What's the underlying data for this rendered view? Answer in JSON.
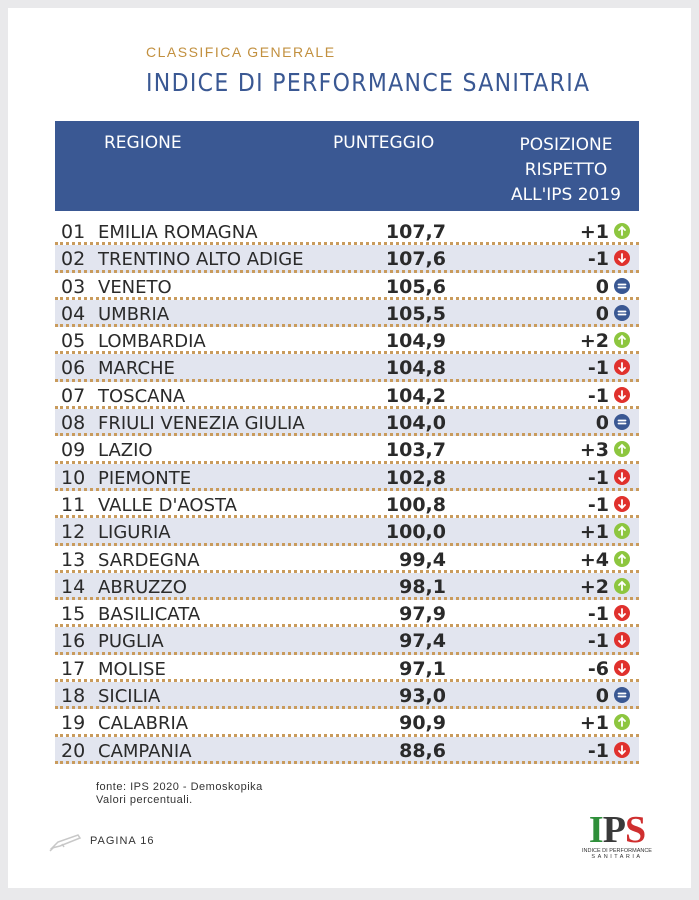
{
  "header": {
    "eyebrow": "CLASSIFICA GENERALE",
    "title": "INDICE DI PERFORMANCE SANITARIA"
  },
  "table": {
    "col_region": "REGIONE",
    "col_score": "PUNTEGGIO",
    "col_position_lines": [
      "POSIZIONE",
      "RISPETTO",
      "ALL'IPS 2019"
    ],
    "rows": [
      {
        "rank": "01",
        "region": "EMILIA ROMAGNA",
        "score": "107,7",
        "change": "+1",
        "trend": "up"
      },
      {
        "rank": "02",
        "region": "TRENTINO ALTO ADIGE",
        "score": "107,6",
        "change": "-1",
        "trend": "down"
      },
      {
        "rank": "03",
        "region": "VENETO",
        "score": "105,6",
        "change": "0",
        "trend": "same"
      },
      {
        "rank": "04",
        "region": "UMBRIA",
        "score": "105,5",
        "change": "0",
        "trend": "same"
      },
      {
        "rank": "05",
        "region": "LOMBARDIA",
        "score": "104,9",
        "change": "+2",
        "trend": "up"
      },
      {
        "rank": "06",
        "region": "MARCHE",
        "score": "104,8",
        "change": "-1",
        "trend": "down"
      },
      {
        "rank": "07",
        "region": "TOSCANA",
        "score": "104,2",
        "change": "-1",
        "trend": "down"
      },
      {
        "rank": "08",
        "region": "FRIULI VENEZIA GIULIA",
        "score": "104,0",
        "change": "0",
        "trend": "same"
      },
      {
        "rank": "09",
        "region": "LAZIO",
        "score": "103,7",
        "change": "+3",
        "trend": "up"
      },
      {
        "rank": "10",
        "region": "PIEMONTE",
        "score": "102,8",
        "change": "-1",
        "trend": "down"
      },
      {
        "rank": "11",
        "region": "VALLE D'AOSTA",
        "score": "100,8",
        "change": "-1",
        "trend": "down"
      },
      {
        "rank": "12",
        "region": "LIGURIA",
        "score": "100,0",
        "change": "+1",
        "trend": "up"
      },
      {
        "rank": "13",
        "region": "SARDEGNA",
        "score": "99,4",
        "change": "+4",
        "trend": "up"
      },
      {
        "rank": "14",
        "region": "ABRUZZO",
        "score": "98,1",
        "change": "+2",
        "trend": "up"
      },
      {
        "rank": "15",
        "region": "BASILICATA",
        "score": "97,9",
        "change": "-1",
        "trend": "down"
      },
      {
        "rank": "16",
        "region": "PUGLIA",
        "score": "97,4",
        "change": "-1",
        "trend": "down"
      },
      {
        "rank": "17",
        "region": "MOLISE",
        "score": "97,1",
        "change": "-6",
        "trend": "down"
      },
      {
        "rank": "18",
        "region": "SICILIA",
        "score": "93,0",
        "change": "0",
        "trend": "same"
      },
      {
        "rank": "19",
        "region": "CALABRIA",
        "score": "90,9",
        "change": "+1",
        "trend": "up"
      },
      {
        "rank": "20",
        "region": "CAMPANIA",
        "score": "88,6",
        "change": "-1",
        "trend": "down"
      }
    ]
  },
  "trend_icons": {
    "up": {
      "icon": "arrow-up-circle-icon",
      "color": "#8dc63f"
    },
    "down": {
      "icon": "arrow-down-circle-icon",
      "color": "#e0312d"
    },
    "same": {
      "icon": "equals-circle-icon",
      "color": "#3a5893"
    }
  },
  "footer": {
    "source": "fonte: IPS 2020 - Demoskopika",
    "note": "Valori percentuali.",
    "page": "PAGINA 16"
  },
  "logo": {
    "mark_i": "I",
    "mark_p": "P",
    "mark_s": "S",
    "line1": "INDICE DI PERFORMANCE",
    "line2": "SANITARIA"
  },
  "colors": {
    "header_bg": "#3a5893",
    "eyebrow": "#c2903f",
    "row_alt": "#e2e5ef",
    "dotted_rule": "#c99b5c"
  }
}
